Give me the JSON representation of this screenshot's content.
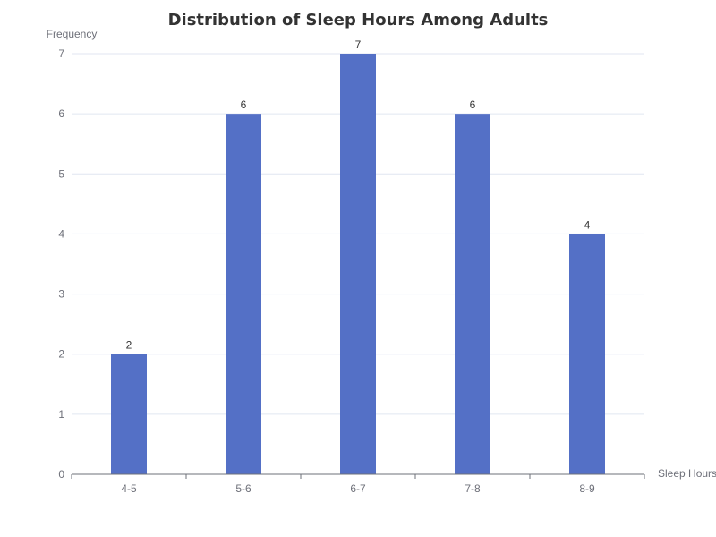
{
  "chart_data": {
    "type": "bar",
    "title": "Distribution of Sleep Hours Among Adults",
    "xlabel": "Sleep Hours",
    "ylabel": "Frequency",
    "categories": [
      "4-5",
      "5-6",
      "6-7",
      "7-8",
      "8-9"
    ],
    "values": [
      2,
      6,
      7,
      6,
      4
    ],
    "ylim": [
      0,
      7
    ],
    "yticks": [
      "0",
      "1",
      "2",
      "3",
      "4",
      "5",
      "6",
      "7"
    ],
    "grid": true,
    "data_labels": true,
    "bar_color": "#5470c6"
  }
}
